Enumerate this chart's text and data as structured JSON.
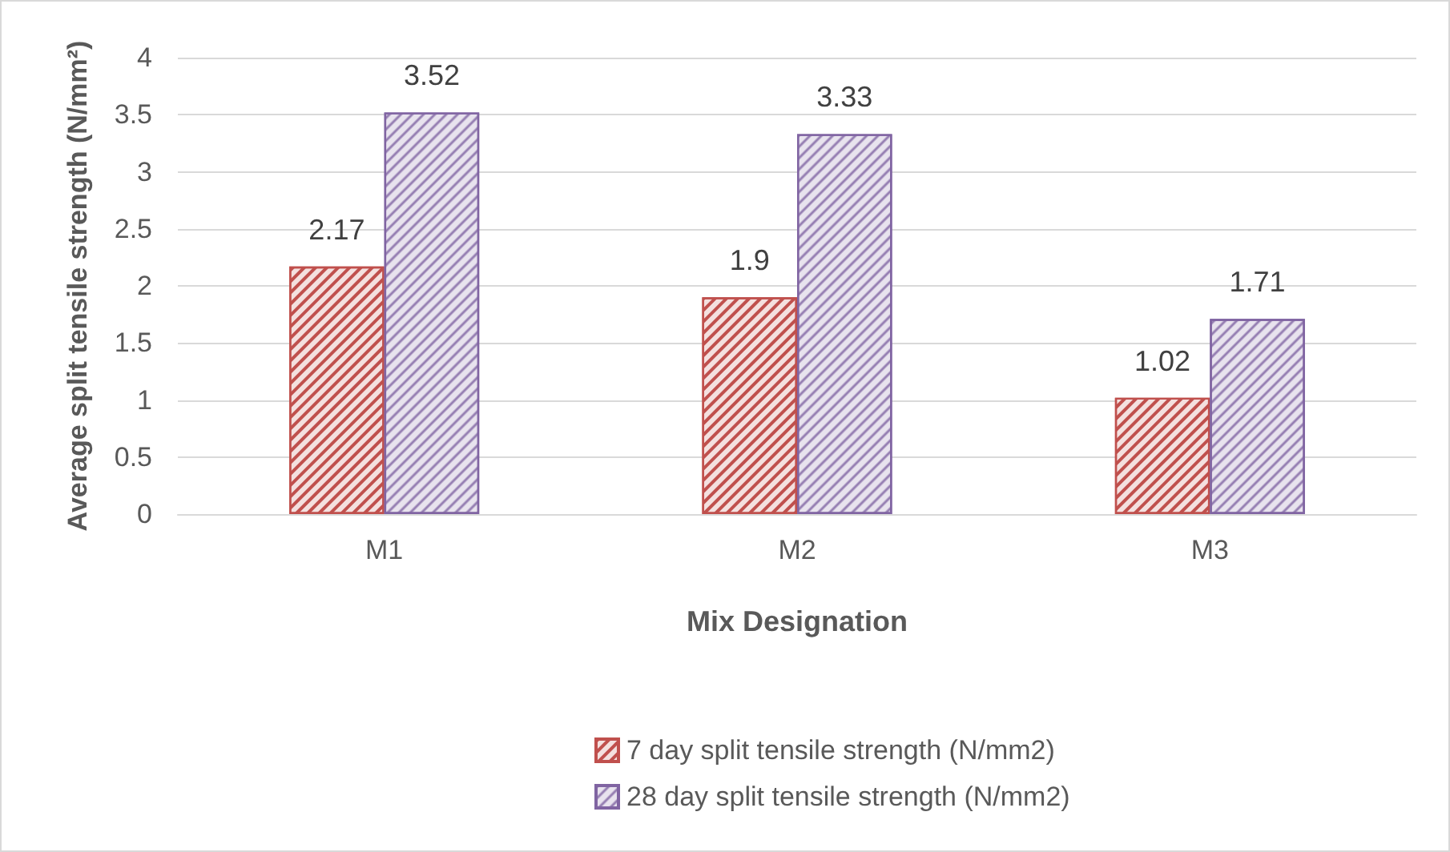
{
  "chart_data": {
    "type": "bar",
    "xlabel": "Mix Designation",
    "ylabel": "Average split tensile strength (N/mm²)",
    "categories": [
      "M1",
      "M2",
      "M3"
    ],
    "series": [
      {
        "name": "7 day split tensile strength (N/mm2)",
        "color": "#c0504d",
        "values": [
          2.17,
          1.9,
          1.02
        ]
      },
      {
        "name": "28 day split tensile strength (N/mm2)",
        "color": "#8064a2",
        "values": [
          3.52,
          3.33,
          1.71
        ]
      }
    ],
    "ylim": [
      0,
      4
    ],
    "yticks": [
      0,
      0.5,
      1,
      1.5,
      2,
      2.5,
      3,
      3.5,
      4
    ],
    "grid": "y",
    "legend": "bottom",
    "data_labels": true
  }
}
